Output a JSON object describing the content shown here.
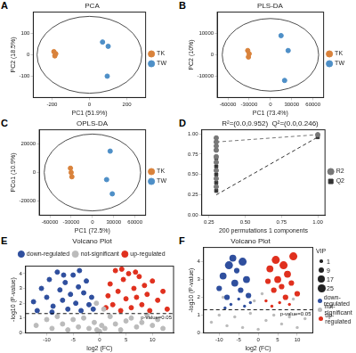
{
  "chart_data": [
    {
      "panel_label": "A",
      "type": "scatter",
      "title": "PCA",
      "x_label": "PC1 (51.9%)",
      "y_label": "PC2 (18.5%)",
      "xlim": [
        -300,
        300
      ],
      "ylim": [
        -200,
        200
      ],
      "xticks": [
        -200,
        0,
        200
      ],
      "yticks": [
        -100,
        0,
        100
      ],
      "grid": false,
      "legend": "right",
      "ellipse": {
        "cx": 0,
        "cy": 0,
        "rx": 280,
        "ry": 180
      },
      "series": [
        {
          "name": "TK",
          "color": "#d9823b",
          "marker": "circle",
          "x": [
            -190,
            -185,
            -180
          ],
          "y": [
            15,
            -5,
            5
          ]
        },
        {
          "name": "TW",
          "color": "#4e8fc7",
          "marker": "circle",
          "x": [
            70,
            100,
            95
          ],
          "y": [
            60,
            40,
            -100
          ]
        }
      ]
    },
    {
      "panel_label": "B",
      "type": "scatter",
      "title": "PLS-DA",
      "x_label": "PC1 (73.4%)",
      "y_label": "PC2 (10%)",
      "xlim": [
        -75000,
        75000
      ],
      "ylim": [
        -20000,
        20000
      ],
      "xticks": [
        -60000,
        -30000,
        0,
        30000,
        60000
      ],
      "yticks": [
        -10000,
        0,
        10000
      ],
      "grid": false,
      "legend": "right",
      "ellipse": {
        "cx": 0,
        "cy": 0,
        "rx": 68000,
        "ry": 17000
      },
      "series": [
        {
          "name": "TK",
          "color": "#d9823b",
          "marker": "circle",
          "x": [
            -32000,
            -31000,
            -30000
          ],
          "y": [
            2000,
            -1000,
            500
          ]
        },
        {
          "name": "TW",
          "color": "#4e8fc7",
          "marker": "circle",
          "x": [
            15000,
            25000,
            20000
          ],
          "y": [
            9000,
            2000,
            -12000
          ]
        }
      ]
    },
    {
      "panel_label": "C",
      "type": "scatter",
      "title": "OPLS-DA",
      "x_label": "PC1 (72.5%)",
      "y_label": "PCo1 (10.9%)",
      "xlim": [
        -75000,
        75000
      ],
      "ylim": [
        -30000,
        30000
      ],
      "xticks": [
        -60000,
        -30000,
        0,
        30000,
        60000
      ],
      "yticks": [
        -20000,
        0,
        20000
      ],
      "grid": false,
      "legend": "right",
      "ellipse": {
        "cx": 0,
        "cy": 0,
        "rx": 68000,
        "ry": 27000
      },
      "series": [
        {
          "name": "TK",
          "color": "#d9823b",
          "marker": "circle",
          "x": [
            -31000,
            -30000,
            -29000
          ],
          "y": [
            3000,
            0,
            -3000
          ]
        },
        {
          "name": "TW",
          "color": "#4e8fc7",
          "marker": "circle",
          "x": [
            25000,
            20000,
            28000
          ],
          "y": [
            15000,
            -5000,
            -15000
          ]
        }
      ]
    },
    {
      "panel_label": "D",
      "type": "scatter",
      "annotation": "R²=(0.0,0.952)  Q²=(0.0,0.246)",
      "x_label": "200 permutations 1 components",
      "xlim": [
        0.2,
        1.05
      ],
      "ylim": [
        0,
        1.05
      ],
      "xticks": [
        0.25,
        {
          "value": 0.5,
          "label": "0.50"
        },
        0.75,
        {
          "value": 1,
          "label": "1.00"
        }
      ],
      "yticks": [
        {
          "value": 0,
          "label": "0.00"
        },
        0.25,
        {
          "value": 0.5,
          "label": "0.50"
        },
        0.75,
        {
          "value": 1,
          "label": "1.00"
        }
      ],
      "grid": false,
      "legend": "right",
      "series": [
        {
          "name": "R2",
          "color": "#777777",
          "marker": "circle",
          "line_style": "dashed",
          "x": [
            0.3,
            0.3,
            0.3,
            0.3,
            0.3,
            0.3,
            0.3,
            0.3,
            0.3,
            1.0
          ],
          "y": [
            0.95,
            0.9,
            0.85,
            0.8,
            0.72,
            0.65,
            0.55,
            0.45,
            0.35,
            0.99
          ],
          "fit_x": [
            0.3,
            1.0
          ],
          "fit_y": [
            0.9,
            0.99
          ]
        },
        {
          "name": "Q2",
          "color": "#333333",
          "marker": "square",
          "line_style": "dashed",
          "x": [
            0.3,
            0.3,
            0.3,
            0.3,
            0.3,
            0.3,
            0.3,
            1.0
          ],
          "y": [
            0.9,
            0.8,
            0.7,
            0.6,
            0.5,
            0.4,
            0.3,
            0.96
          ],
          "fit_x": [
            0.3,
            1.0
          ],
          "fit_y": [
            0.25,
            0.96
          ]
        }
      ]
    },
    {
      "panel_label": "E",
      "type": "scatter",
      "title": "Volcano Plot",
      "x_label": "log2 (FC)",
      "y_label": "-log10 (P-value)",
      "xlim": [
        -14,
        14
      ],
      "ylim": [
        0,
        4.5
      ],
      "xticks": [
        -10,
        -5,
        0,
        5,
        10
      ],
      "yticks": [
        0,
        1,
        2,
        3,
        4
      ],
      "grid": false,
      "legend": "top",
      "threshold": {
        "value": 1.301,
        "label": "p-value=0.05",
        "line_style": "dashed"
      },
      "series": [
        {
          "name": "down-regulated",
          "color": "#2f4f9e",
          "marker": "circle",
          "x": [
            -12.5,
            -11,
            -10,
            -9.5,
            -8.8,
            -8,
            -7.5,
            -7,
            -6.5,
            -6,
            -5.5,
            -5,
            -4.5,
            -4,
            -3.5,
            -3,
            -2.5,
            -2,
            -1.5,
            -1.2,
            -9,
            -6.8,
            -3.8,
            -11.8
          ],
          "y": [
            2.1,
            3.0,
            2.4,
            3.6,
            1.8,
            4.1,
            2.9,
            2.2,
            3.4,
            1.6,
            2.6,
            3.9,
            2.0,
            3.1,
            1.5,
            2.7,
            3.5,
            1.9,
            2.4,
            1.6,
            1.4,
            3.9,
            4.2,
            1.5
          ]
        },
        {
          "name": "not-significant",
          "color": "#bbbbbb",
          "marker": "circle",
          "x": [
            -12,
            -10,
            -9,
            -8,
            -7,
            -6,
            -5,
            -4,
            -3,
            -2,
            -1,
            -0.5,
            0,
            0.4,
            0.8,
            -0.6,
            1,
            2,
            3,
            4,
            5,
            6,
            7,
            8,
            9,
            10,
            11,
            12
          ],
          "y": [
            0.5,
            0.9,
            0.3,
            1.1,
            0.6,
            0.2,
            0.9,
            0.4,
            1.0,
            0.3,
            0.7,
            0.2,
            0.1,
            0.5,
            1.6,
            2.0,
            0.3,
            1.1,
            0.6,
            0.2,
            0.8,
            1.0,
            0.4,
            0.7,
            1.2,
            0.5,
            0.9,
            0.3
          ]
        },
        {
          "name": "up-regulated",
          "color": "#e0301e",
          "marker": "circle",
          "x": [
            1.2,
            1.6,
            2,
            2.5,
            3,
            3.5,
            4,
            4.5,
            5,
            5.5,
            6,
            6.5,
            7,
            7.5,
            8,
            8.5,
            9,
            9.5,
            10,
            11,
            12,
            4.2,
            6.8,
            12.8
          ],
          "y": [
            1.7,
            2.5,
            3.3,
            1.9,
            4.2,
            2.8,
            1.5,
            3.6,
            2.3,
            4.0,
            1.7,
            3.0,
            2.4,
            3.8,
            1.9,
            3.2,
            2.6,
            1.5,
            3.5,
            2.2,
            2.8,
            4.3,
            4.1,
            1.6
          ]
        }
      ]
    },
    {
      "panel_label": "F",
      "type": "bubble",
      "title": "Volcano Plot",
      "x_label": "log2 (FC)",
      "y_label": "-log10 (P-value)",
      "xlim": [
        -14,
        14
      ],
      "ylim": [
        0,
        4.8
      ],
      "xticks": [
        -10,
        -5,
        0,
        5,
        10
      ],
      "yticks": [
        0,
        1,
        2,
        3,
        4
      ],
      "grid": false,
      "legend": "right",
      "threshold": {
        "value": 1.301,
        "label": "p-value=0.05",
        "line_style": "dashed"
      },
      "size_legend": {
        "title": "VIP",
        "values": [
          1,
          9,
          17,
          25
        ]
      },
      "series": [
        {
          "name": "down-regulated",
          "color": "#2f4f9e",
          "marker": "circle",
          "x": [
            -10,
            -9,
            -8,
            -7.5,
            -7,
            -6,
            -5.5,
            -5,
            -4.5,
            -4,
            -3.5,
            -3,
            -2.5,
            -2,
            -8.5,
            -6.5
          ],
          "y": [
            2.5,
            3.2,
            2.0,
            3.8,
            1.6,
            2.8,
            3.5,
            1.9,
            2.4,
            4.0,
            1.5,
            3.0,
            2.1,
            1.7,
            1.4,
            4.2
          ],
          "size": [
            9,
            17,
            9,
            25,
            1,
            17,
            9,
            1,
            9,
            25,
            1,
            17,
            9,
            1,
            1,
            17
          ]
        },
        {
          "name": "not-significant",
          "color": "#bbbbbb",
          "marker": "circle",
          "x": [
            -12,
            -10,
            -8,
            -6,
            -4,
            -2,
            0,
            1,
            -1,
            2,
            4,
            6,
            8,
            10,
            12,
            -9,
            9
          ],
          "y": [
            0.6,
            1.0,
            0.4,
            0.9,
            0.3,
            1.1,
            0.2,
            2.2,
            1.8,
            0.7,
            1.0,
            0.5,
            0.9,
            0.3,
            0.8,
            2.0,
            1.9
          ],
          "size": [
            1,
            1,
            1,
            1,
            1,
            1,
            1,
            1,
            1,
            1,
            1,
            1,
            1,
            1,
            1,
            1,
            1
          ]
        },
        {
          "name": "up-regulated",
          "color": "#e0301e",
          "marker": "circle",
          "x": [
            2,
            2.5,
            3,
            3.5,
            4,
            4.5,
            5,
            5.5,
            6,
            6.5,
            7,
            7.5,
            8,
            8.5,
            9,
            10
          ],
          "y": [
            1.8,
            2.9,
            3.6,
            1.5,
            2.4,
            4.1,
            3.0,
            1.7,
            2.6,
            3.8,
            2.0,
            3.3,
            1.6,
            2.8,
            4.3,
            2.2
          ],
          "size": [
            1,
            9,
            17,
            1,
            9,
            25,
            17,
            1,
            9,
            25,
            9,
            17,
            1,
            9,
            25,
            9
          ]
        }
      ]
    }
  ]
}
